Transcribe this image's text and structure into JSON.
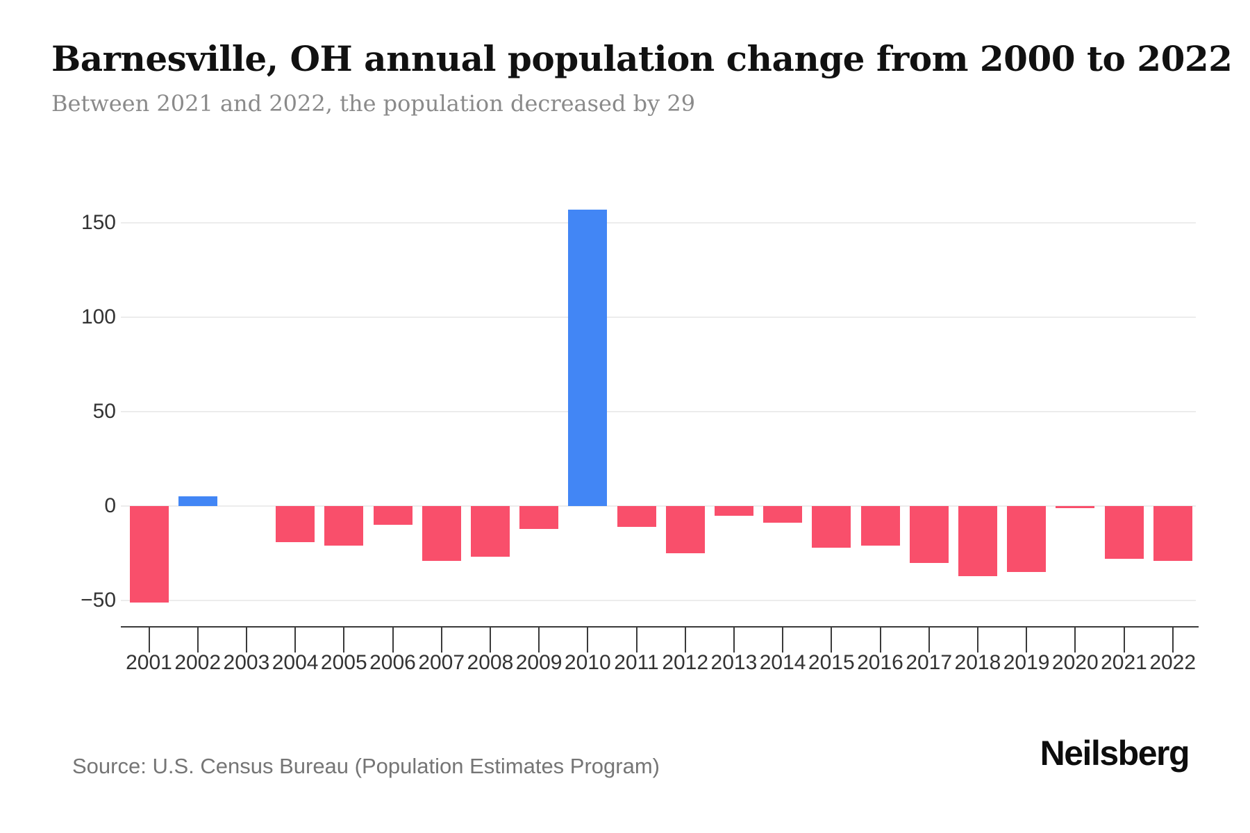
{
  "header": {
    "title": "Barnesville, OH annual population change from 2000 to 2022",
    "subtitle": "Between 2021 and 2022, the population decreased by 29"
  },
  "footer": {
    "source": "Source: U.S. Census Bureau (Population Estimates Program)",
    "logo": "Neilsberg"
  },
  "colors": {
    "positive_bar": "#4286f5",
    "negative_bar": "#f94f6b",
    "gridline": "#ececec",
    "axis": "#3a3a3a"
  },
  "chart_data": {
    "type": "bar",
    "title": "Barnesville, OH annual population change from 2000 to 2022",
    "xlabel": "",
    "ylabel": "",
    "categories": [
      "2001",
      "2002",
      "2003",
      "2004",
      "2005",
      "2006",
      "2007",
      "2008",
      "2009",
      "2010",
      "2011",
      "2012",
      "2013",
      "2014",
      "2015",
      "2016",
      "2017",
      "2018",
      "2019",
      "2020",
      "2021",
      "2022"
    ],
    "values": [
      -51,
      5,
      0,
      -19,
      -21,
      -10,
      -29,
      -27,
      -12,
      157,
      -11,
      -25,
      -5,
      -9,
      -22,
      -21,
      -30,
      -37,
      -35,
      -1,
      -28,
      -29
    ],
    "ylim": [
      -60,
      165
    ],
    "yticks": [
      {
        "label": "150",
        "value": 150
      },
      {
        "label": "100",
        "value": 100
      },
      {
        "label": "50",
        "value": 50
      },
      {
        "label": "0",
        "value": 0
      },
      {
        "label": "−50",
        "value": -50
      }
    ],
    "grid": "horizontal",
    "legend": "none",
    "positive_color": "#4286f5",
    "negative_color": "#f94f6b"
  }
}
